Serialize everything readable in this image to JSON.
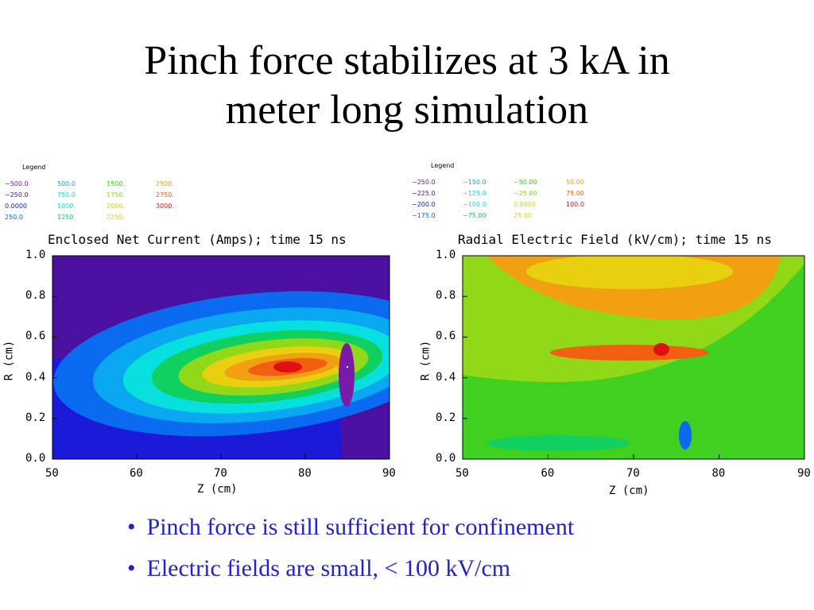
{
  "slide": {
    "title_line1": "Pinch force stabilizes at 3 kA in",
    "title_line2": "meter long simulation",
    "bullets": [
      "Pinch force is still sufficient for confinement",
      "Electric fields are small, < 100 kV/cm"
    ]
  },
  "chart_data": [
    {
      "type": "heatmap",
      "title": "Enclosed Net Current (Amps); time 15 ns",
      "xlabel": "Z (cm)",
      "ylabel": "R (cm)",
      "xlim": [
        50,
        90
      ],
      "ylim": [
        0.0,
        1.0
      ],
      "x_ticks": [
        "50",
        "60",
        "70",
        "80",
        "90"
      ],
      "y_ticks": [
        "0.0",
        "0.2",
        "0.4",
        "0.6",
        "0.8",
        "1.0"
      ],
      "legend_title": "Legend",
      "legend": [
        {
          "label": "−500.0",
          "color": "#7a1aa8"
        },
        {
          "label": "−250.0",
          "color": "#4a10a0"
        },
        {
          "label": "0.0000",
          "color": "#1a1ad8"
        },
        {
          "label": "250.0",
          "color": "#0a6af0"
        },
        {
          "label": "500.0",
          "color": "#0aa8f0"
        },
        {
          "label": "750.0",
          "color": "#08e0e0"
        },
        {
          "label": "1000.",
          "color": "#10e8c0"
        },
        {
          "label": "1250.",
          "color": "#10d060"
        },
        {
          "label": "1500.",
          "color": "#40d020"
        },
        {
          "label": "1750.",
          "color": "#90d818"
        },
        {
          "label": "2000.",
          "color": "#c8d810"
        },
        {
          "label": "2250.",
          "color": "#e8d010"
        },
        {
          "label": "2500.",
          "color": "#f0a010"
        },
        {
          "label": "2750.",
          "color": "#f06010"
        },
        {
          "label": "3000.",
          "color": "#e01010"
        }
      ]
    },
    {
      "type": "heatmap",
      "title": "Radial Electric Field (kV/cm); time 15 ns",
      "xlabel": "Z (cm)",
      "ylabel": "R (cm)",
      "xlim": [
        50,
        90
      ],
      "ylim": [
        0.0,
        1.0
      ],
      "x_ticks": [
        "50",
        "60",
        "70",
        "80",
        "90"
      ],
      "y_ticks": [
        "0.0",
        "0.2",
        "0.4",
        "0.6",
        "0.8",
        "1.0"
      ],
      "legend_title": "Legend",
      "legend": [
        {
          "label": "−250.0",
          "color": "#7a1aa8"
        },
        {
          "label": "−225.0",
          "color": "#4a10a0"
        },
        {
          "label": "−200.0",
          "color": "#1a1ad8"
        },
        {
          "label": "−175.0",
          "color": "#0a6af0"
        },
        {
          "label": "−150.0",
          "color": "#0aa8f0"
        },
        {
          "label": "−125.0",
          "color": "#08e0e0"
        },
        {
          "label": "−100.0",
          "color": "#10e8c0"
        },
        {
          "label": "−75.00",
          "color": "#10d060"
        },
        {
          "label": "−50.00",
          "color": "#40d020"
        },
        {
          "label": "−25.00",
          "color": "#90d818"
        },
        {
          "label": "0.0000",
          "color": "#c8d810"
        },
        {
          "label": "25.00",
          "color": "#e8d010"
        },
        {
          "label": "50.00",
          "color": "#f0a010"
        },
        {
          "label": "75.00",
          "color": "#f06010"
        },
        {
          "label": "100.0",
          "color": "#e01010"
        }
      ]
    }
  ]
}
